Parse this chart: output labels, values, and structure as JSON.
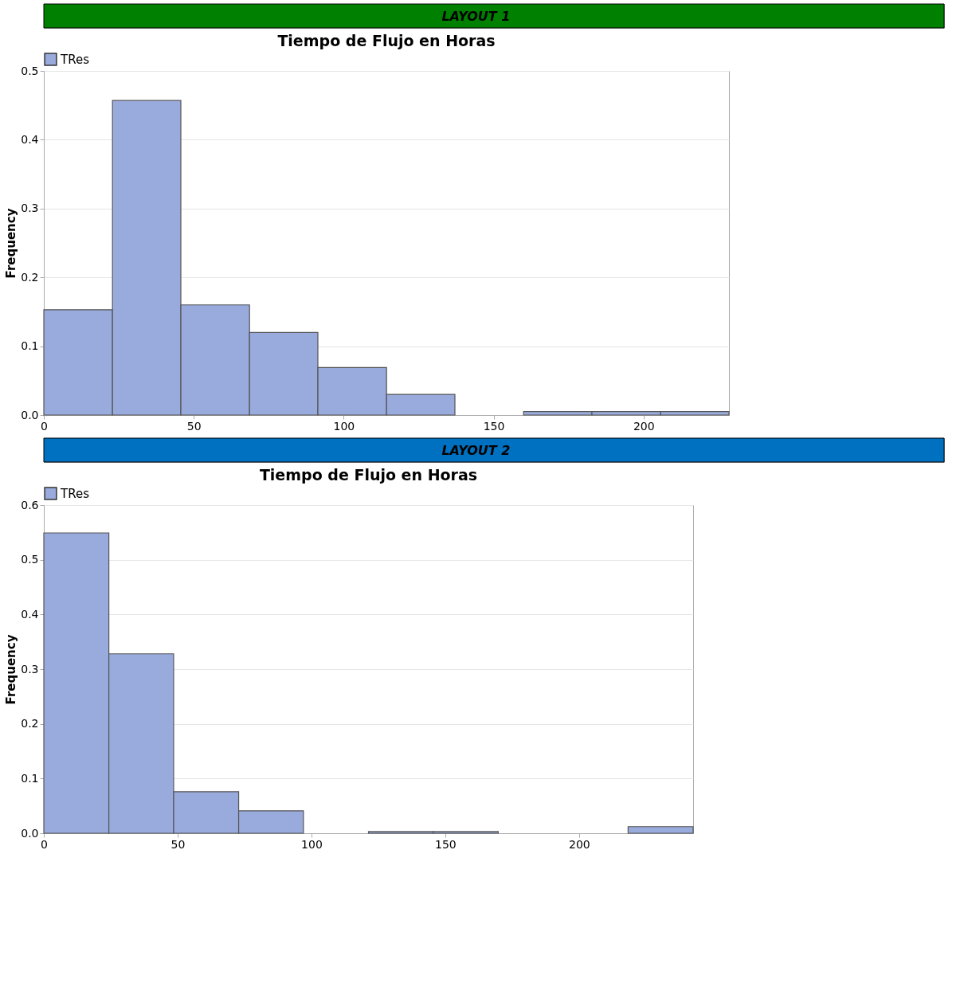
{
  "chart_data": [
    {
      "type": "histogram",
      "annotations": [
        "LAYOUT 1"
      ],
      "title": "Tiempo de Flujo en Horas",
      "ylabel": "Frequency",
      "legend": "top left",
      "grid": "y",
      "bins": [
        0,
        22.9,
        45.7,
        68.6,
        91.4,
        114.3,
        137.1,
        160,
        182.8,
        205.7,
        228.5
      ],
      "series": [
        {
          "name": "TRes",
          "color": "#99aadd",
          "values": [
            0.153,
            0.457,
            0.16,
            0.12,
            0.069,
            0.03,
            0,
            0.005,
            0.005,
            0.005
          ]
        }
      ],
      "xlim": [
        0,
        228.5
      ],
      "xticks": [
        0,
        50,
        100,
        150,
        200
      ],
      "ylim": [
        0,
        0.5
      ],
      "yticks": [
        {
          "value": 0,
          "label": "0.0"
        },
        0.1,
        0.2,
        0.3,
        0.4,
        0.5
      ]
    },
    {
      "type": "histogram",
      "annotations": [
        "LAYOUT 2"
      ],
      "title": "Tiempo de Flujo en Horas",
      "ylabel": "Frequency",
      "legend": "top left",
      "grid": "y",
      "bins": [
        0,
        24.3,
        48.5,
        72.8,
        97.0,
        121.3,
        145.5,
        169.8,
        194.1,
        218.3,
        242.6
      ],
      "series": [
        {
          "name": "TRes",
          "color": "#99aadd",
          "values": [
            0.549,
            0.328,
            0.076,
            0.041,
            0,
            0.003,
            0.003,
            0,
            0,
            0.012
          ]
        }
      ],
      "xlim": [
        0,
        242.6
      ],
      "xticks": [
        0,
        50,
        100,
        150,
        200
      ],
      "ylim": [
        0,
        0.6
      ],
      "yticks": [
        {
          "value": 0,
          "label": "0.0"
        },
        0.1,
        0.2,
        0.3,
        0.4,
        0.5,
        0.6
      ]
    }
  ]
}
